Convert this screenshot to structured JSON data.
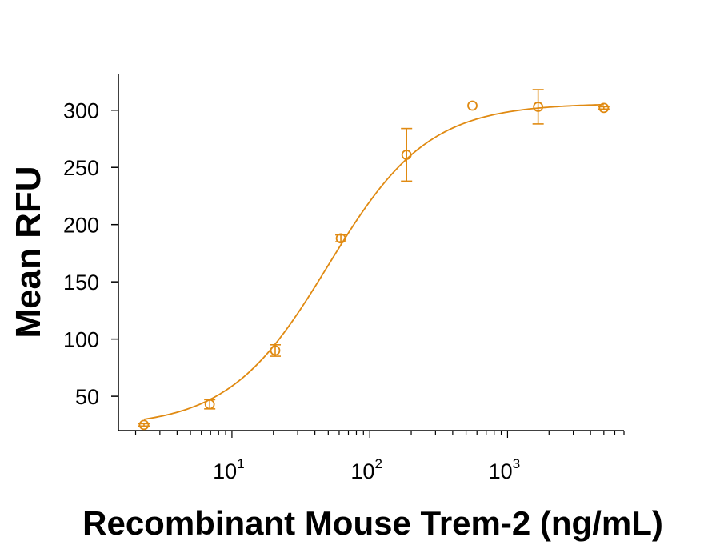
{
  "chart_data": {
    "type": "scatter",
    "title": "",
    "xlabel": "Recombinant Mouse Trem-2 (ng/mL)",
    "ylabel": "Mean RFU",
    "x_scale": "log",
    "xlim": [
      1.5,
      7000
    ],
    "ylim": [
      20,
      332
    ],
    "x_ticks": [
      {
        "value": 10,
        "base": "10",
        "exp": "1"
      },
      {
        "value": 100,
        "base": "10",
        "exp": "2"
      },
      {
        "value": 1000,
        "base": "10",
        "exp": "3"
      }
    ],
    "y_ticks": [
      {
        "value": 50,
        "label": "50"
      },
      {
        "value": 100,
        "label": "100"
      },
      {
        "value": 150,
        "label": "150"
      },
      {
        "value": 200,
        "label": "200"
      },
      {
        "value": 250,
        "label": "250"
      },
      {
        "value": 300,
        "label": "300"
      }
    ],
    "grid": false,
    "color": "#E08A12",
    "series": [
      {
        "marker": "open-circle",
        "points": [
          {
            "x": 2.3,
            "y": 25,
            "err": 1
          },
          {
            "x": 6.9,
            "y": 43,
            "err": 4
          },
          {
            "x": 20.6,
            "y": 90,
            "err": 5
          },
          {
            "x": 61.7,
            "y": 188,
            "err": 3
          },
          {
            "x": 185,
            "y": 261,
            "err": 23
          },
          {
            "x": 556,
            "y": 304,
            "err": 0
          },
          {
            "x": 1667,
            "y": 303,
            "err": 15
          },
          {
            "x": 5000,
            "y": 302,
            "err": 1
          }
        ],
        "fit": {
          "model": "4PL",
          "bottom": 23,
          "top": 306,
          "ec50": 50,
          "hill": 1.2
        }
      }
    ]
  }
}
